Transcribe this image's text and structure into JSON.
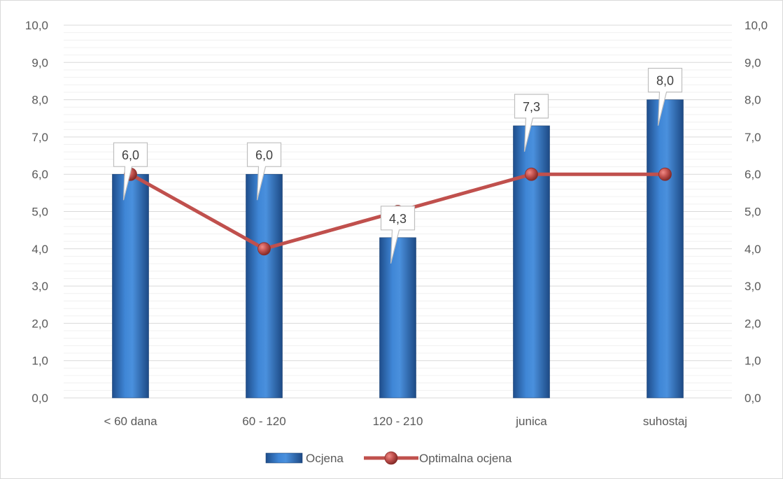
{
  "chart_data": {
    "type": "bar",
    "categories": [
      "< 60 dana",
      "60 - 120",
      "120 - 210",
      "junica",
      "suhostaj"
    ],
    "series": [
      {
        "name": "Ocjena",
        "type": "bar",
        "values": [
          6.0,
          6.0,
          4.3,
          7.3,
          8.0
        ],
        "color": "#2e75c8",
        "data_labels": [
          "6,0",
          "6,0",
          "4,3",
          "7,3",
          "8,0"
        ]
      },
      {
        "name": "Optimalna ocjena",
        "type": "line",
        "values": [
          6.0,
          4.0,
          5.0,
          6.0,
          6.0
        ],
        "color": "#c0504d"
      }
    ],
    "ylim": [
      0,
      10
    ],
    "y_ticks": [
      "0,0",
      "1,0",
      "2,0",
      "3,0",
      "4,0",
      "5,0",
      "6,0",
      "7,0",
      "8,0",
      "9,0",
      "10,0"
    ],
    "y2_ticks": [
      "0,0",
      "1,0",
      "2,0",
      "3,0",
      "4,0",
      "5,0",
      "6,0",
      "7,0",
      "8,0",
      "9,0",
      "10,0"
    ],
    "grid": true,
    "legend_position": "bottom"
  }
}
